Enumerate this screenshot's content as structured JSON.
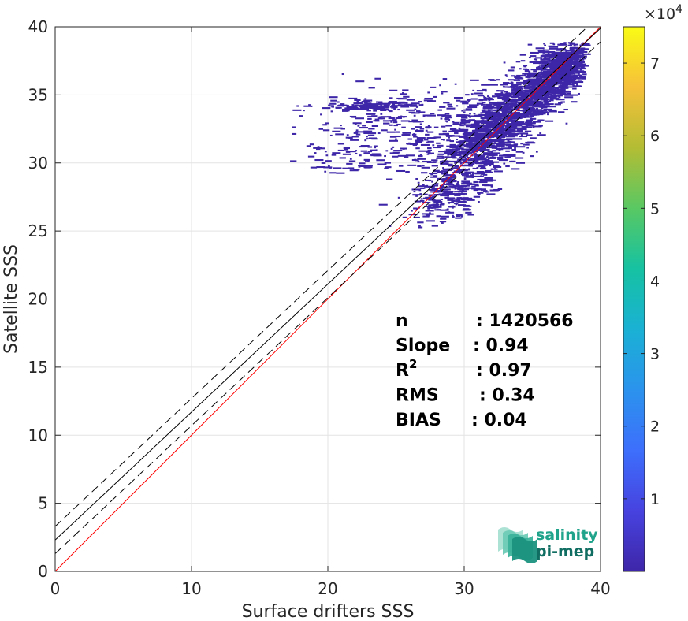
{
  "chart_data": {
    "type": "heatmap",
    "xlabel": "Surface drifters SSS",
    "ylabel": "Satellite SSS",
    "xlim": [
      0,
      40
    ],
    "ylim": [
      0,
      40
    ],
    "xticks": [
      "0",
      "10",
      "20",
      "30",
      "40"
    ],
    "yticks": [
      "0",
      "5",
      "10",
      "15",
      "20",
      "25",
      "30",
      "35",
      "40"
    ],
    "grid": true,
    "colorbar": {
      "range": [
        0,
        75000
      ],
      "ticks": [
        "1",
        "2",
        "3",
        "4",
        "5",
        "6",
        "7"
      ],
      "multiplier_base": "×10",
      "multiplier_exponent": "4",
      "colors": [
        "#3e26a8",
        "#4743e0",
        "#3d6ffc",
        "#2b93ed",
        "#1ab1d4",
        "#16c2a2",
        "#59c863",
        "#b3bd34",
        "#f6c03a",
        "#f9fb15"
      ]
    },
    "reference_lines": [
      {
        "name": "identity",
        "intercept": 0,
        "slope": 1,
        "color": "#ff0000",
        "style": "solid"
      },
      {
        "name": "fit",
        "intercept": 2.3,
        "slope": 0.94,
        "color": "#000000",
        "style": "solid"
      },
      {
        "name": "fit-plus",
        "intercept": 3.3,
        "slope": 0.94,
        "color": "#000000",
        "style": "dashed"
      },
      {
        "name": "fit-minus",
        "intercept": 1.3,
        "slope": 0.94,
        "color": "#000000",
        "style": "dashed"
      }
    ],
    "density_color": "#3e26a8",
    "density_clusters": [
      {
        "x": 34.0,
        "y": 34.5,
        "sx": 2.8,
        "sy": 2.4,
        "corr": 0.85,
        "n": 1400
      },
      {
        "x": 37.0,
        "y": 37.0,
        "sx": 1.1,
        "sy": 1.1,
        "corr": 0.6,
        "n": 500
      },
      {
        "x": 31.0,
        "y": 31.0,
        "sx": 1.8,
        "sy": 1.8,
        "corr": 0.5,
        "n": 450
      },
      {
        "x": 26.0,
        "y": 32.5,
        "sx": 4.0,
        "sy": 1.5,
        "corr": 0.2,
        "n": 350
      },
      {
        "x": 28.5,
        "y": 27.5,
        "sx": 1.4,
        "sy": 1.0,
        "corr": 0.3,
        "n": 200
      },
      {
        "x": 23.0,
        "y": 34.2,
        "sx": 2.0,
        "sy": 0.2,
        "corr": 0.0,
        "n": 120
      },
      {
        "x": 22.0,
        "y": 30.3,
        "sx": 3.0,
        "sy": 0.6,
        "corr": 0.0,
        "n": 60
      }
    ],
    "stats": [
      {
        "label": "n",
        "value": ": 1420566"
      },
      {
        "label": "Slope",
        "value": ": 0.94"
      },
      {
        "label": "R",
        "sup": "2",
        "value": ": 0.97"
      },
      {
        "label": "RMS",
        "value": ": 0.34"
      },
      {
        "label": "BIAS",
        "value": ": 0.04"
      }
    ]
  },
  "logo": {
    "line1": "salinity",
    "line2": "pi-mep",
    "color1": "#1fa38a",
    "color2": "#0f6e61"
  }
}
